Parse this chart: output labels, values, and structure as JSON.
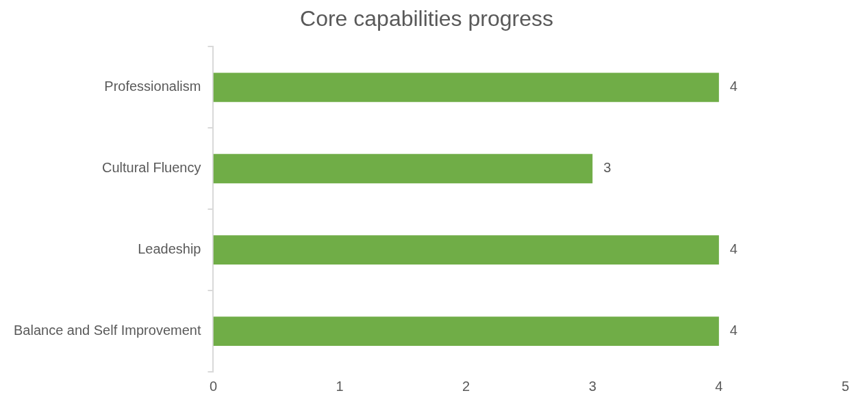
{
  "chart_data": {
    "type": "bar",
    "orientation": "horizontal",
    "title": "Core capabilities progress",
    "categories": [
      "Professionalism",
      "Cultural Fluency",
      "Leadeship",
      "Balance and Self Improvement"
    ],
    "values": [
      4,
      3,
      4,
      4
    ],
    "color": "#70ad47",
    "xlim": [
      0,
      5
    ],
    "xticks": [
      0,
      1,
      2,
      3,
      4,
      5
    ],
    "data_labels": true,
    "grid": false,
    "legend": false
  }
}
